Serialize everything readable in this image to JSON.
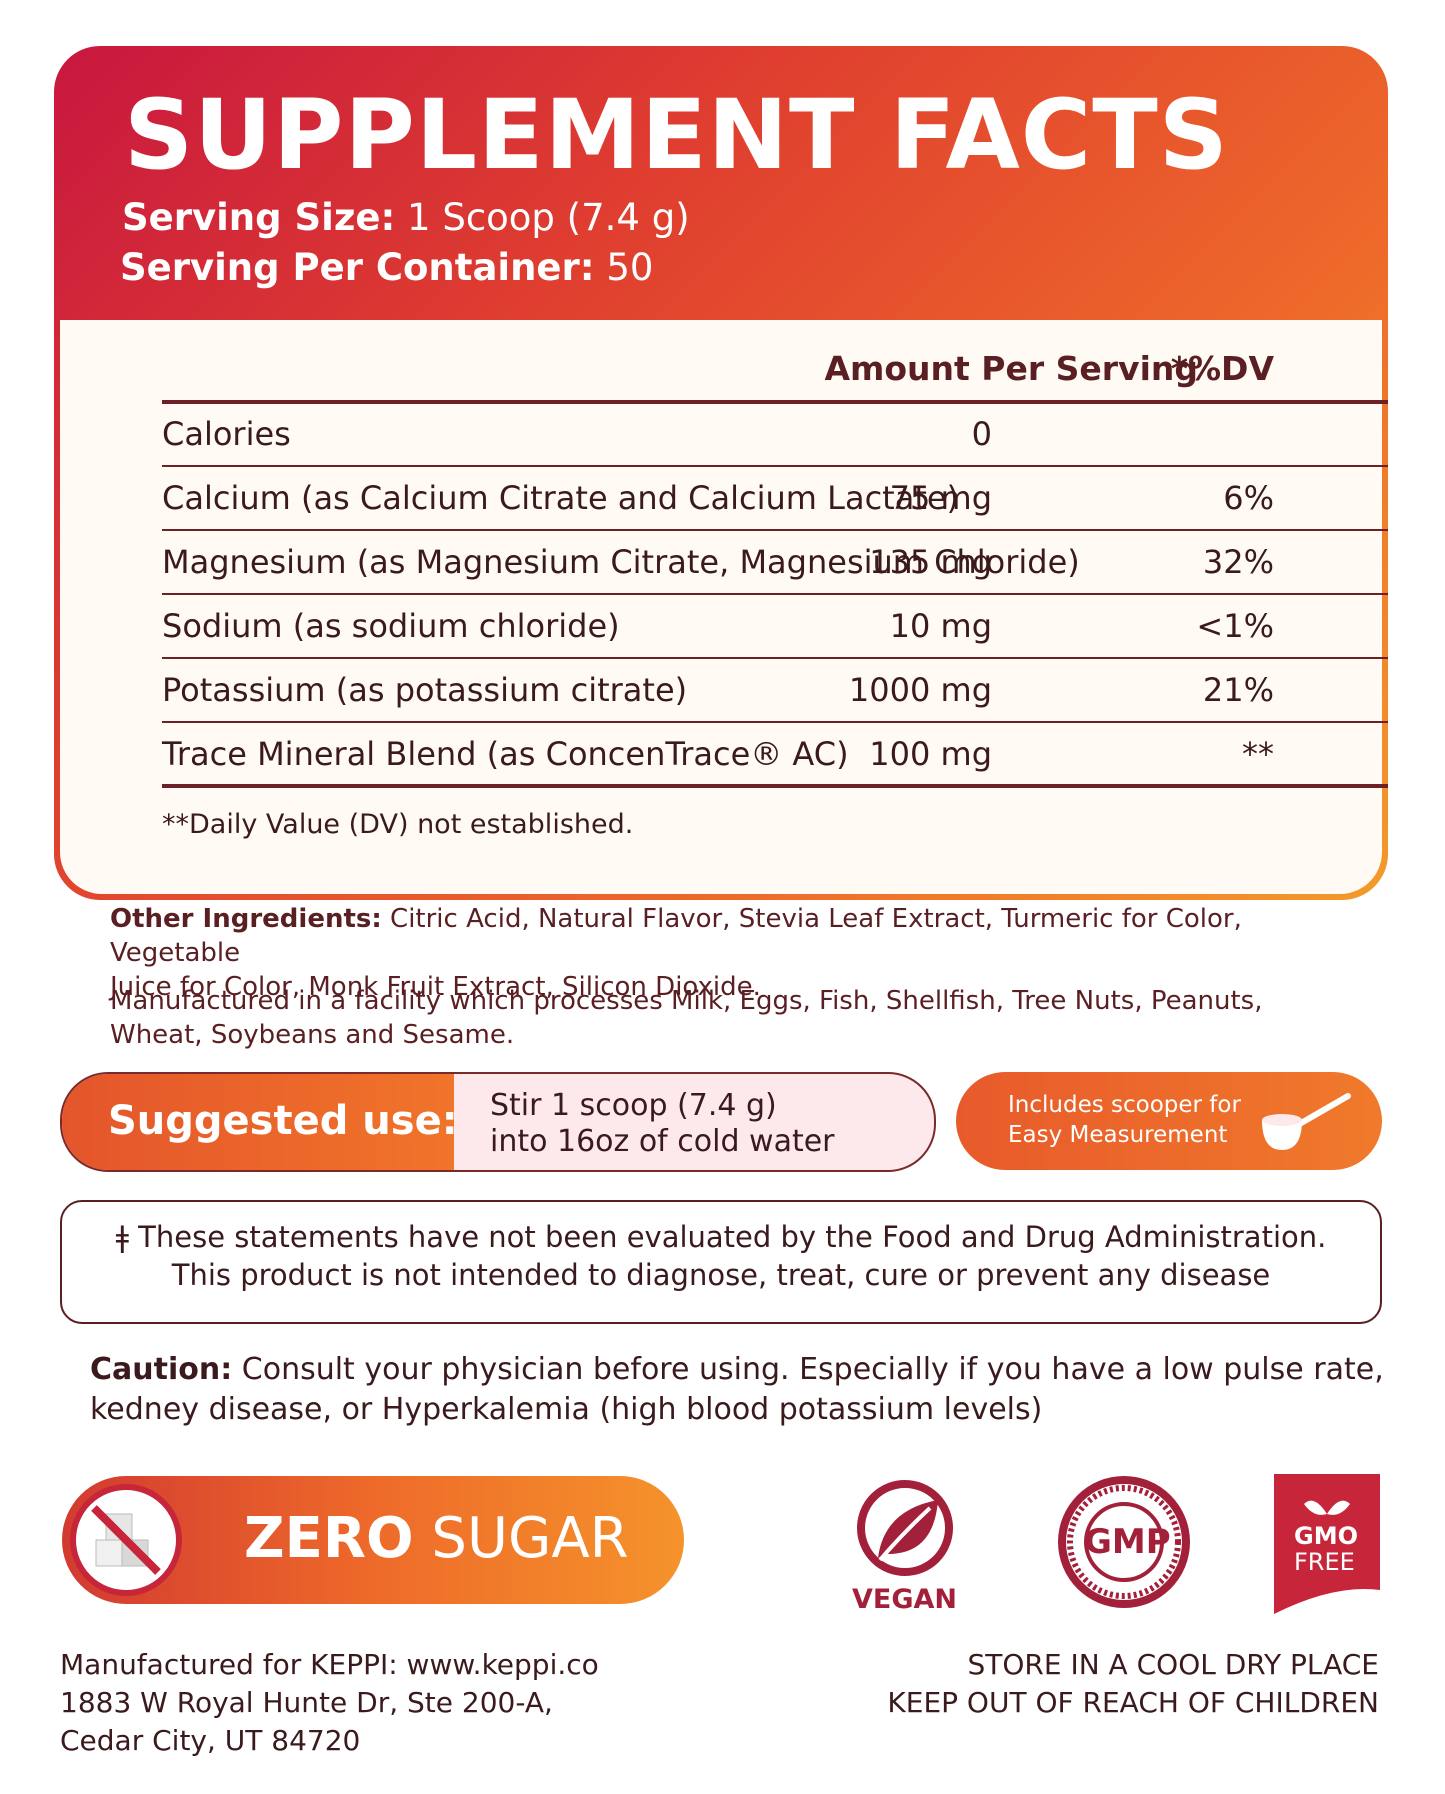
{
  "title": "SUPPLEMENT FACTS",
  "serving": {
    "size_label": "Serving Size:",
    "size_value": "1 Scoop (7.4 g)",
    "per_container_label": "Serving Per Container:",
    "per_container_value": "50"
  },
  "table": {
    "header_amount": "Amount Per Serving",
    "header_dv": "*%DV",
    "rows": [
      {
        "name": "Calories",
        "amount": "0",
        "dv": ""
      },
      {
        "name": "Calcium (as Calcium Citrate and Calcium Lactate)",
        "amount": "75 mg",
        "dv": "6%"
      },
      {
        "name": "Magnesium (as Magnesium Citrate, Magnesium Chloride)",
        "amount": "135 mg",
        "dv": "32%"
      },
      {
        "name": "Sodium (as sodium chloride)",
        "amount": "10 mg",
        "dv": "<1%"
      },
      {
        "name": "Potassium (as potassium citrate)",
        "amount": "1000 mg",
        "dv": "21%"
      },
      {
        "name": "Trace Mineral Blend (as ConcenTrace® AC)",
        "amount": "100 mg",
        "dv": "**"
      }
    ],
    "footnote": "**Daily Value (DV) not established."
  },
  "other_ingredients": {
    "label": "Other Ingredients:",
    "line1": "Citric Acid, Natural Flavor, Stevia Leaf Extract, Turmeric for Color, Vegetable",
    "line2": "Juice for Color, Monk Fruit Extract, Silicon Dioxide."
  },
  "allergen": {
    "line1": "Manufactured in a facility which processes Milk, Eggs, Fish, Shellfish, Tree Nuts, Peanuts,",
    "line2": "Wheat, Soybeans and Sesame."
  },
  "suggested_use": {
    "label": "Suggested use:",
    "line1": "Stir 1 scoop (7.4 g)",
    "line2": "into 16oz of cold water"
  },
  "scooper": {
    "line1": "Includes scooper for",
    "line2": "Easy Measurement"
  },
  "disclaimer": {
    "line1": "ǂ These statements have not been evaluated by the Food and Drug Administration.",
    "line2": "This product is not intended to diagnose, treat, cure or prevent any disease"
  },
  "caution": {
    "label": "Caution:",
    "line1": "Consult your physician before using. Especially if you have a low pulse rate,",
    "line2": "kedney disease, or Hyperkalemia (high blood potassium levels)"
  },
  "zero_sugar": {
    "bold": "ZERO",
    "rest": "SUGAR"
  },
  "badges": {
    "vegan": "VEGAN",
    "gmp": "GMP",
    "gmo_line1": "GMO",
    "gmo_line2": "FREE"
  },
  "footer_left": {
    "line1": "Manufactured for KEPPI: www.keppi.co",
    "line2": "1883 W Royal Hunte Dr, Ste 200-A,",
    "line3": "Cedar City, UT 84720"
  },
  "footer_right": {
    "line1": "STORE IN A COOL DRY PLACE",
    "line2": "KEEP OUT OF REACH OF CHILDREN"
  },
  "colors": {
    "accent_red": "#c8173f",
    "accent_orange": "#f39a2b",
    "text_maroon": "#5a1f22"
  }
}
